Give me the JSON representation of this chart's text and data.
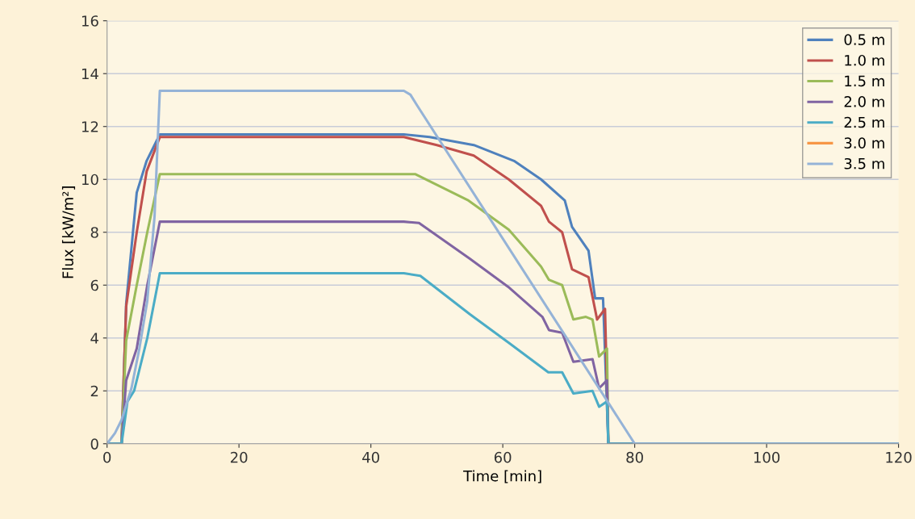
{
  "chart_data": {
    "type": "line",
    "xlabel": "Time [min]",
    "ylabel": "Flux [kW/m²]",
    "xlim": [
      0,
      120
    ],
    "ylim": [
      0,
      16
    ],
    "xticks": [
      0,
      20,
      40,
      60,
      80,
      100,
      120
    ],
    "yticks": [
      0,
      2,
      4,
      6,
      8,
      10,
      12,
      14,
      16
    ],
    "grid": "y",
    "legend": "top right",
    "marker": "none",
    "line_style": "solid",
    "series": [
      {
        "name": "0.5 m",
        "color": "#4f81bd",
        "x": [
          0,
          2.2,
          2.9,
          4.5,
          6,
          8,
          45,
          48.9,
          55.6,
          61.7,
          65.8,
          69.4,
          70.5,
          73,
          74,
          75.2,
          76,
          120
        ],
        "values": [
          0,
          0,
          5.3,
          9.5,
          10.7,
          11.7,
          11.7,
          11.6,
          11.3,
          10.7,
          10.0,
          9.2,
          8.2,
          7.3,
          5.5,
          5.5,
          0,
          0
        ]
      },
      {
        "name": "1.0 m",
        "color": "#c0504d",
        "x": [
          0,
          2.2,
          2.9,
          4.5,
          6,
          8,
          45,
          50,
          55.6,
          60.9,
          65.8,
          67,
          69,
          70.5,
          73,
          74.3,
          75.5,
          76,
          120
        ],
        "values": [
          0,
          0,
          5.2,
          8,
          10.3,
          11.6,
          11.6,
          11.3,
          10.9,
          10.0,
          9.0,
          8.4,
          8.0,
          6.6,
          6.3,
          4.7,
          5.1,
          0,
          0
        ]
      },
      {
        "name": "1.5 m",
        "color": "#9bbb59",
        "x": [
          0,
          2.2,
          2.9,
          4.5,
          6.1,
          8,
          46.7,
          54.8,
          60.9,
          65.8,
          67,
          69,
          70.7,
          72.6,
          73.6,
          74.6,
          75.8,
          76,
          120
        ],
        "values": [
          0,
          0,
          3.9,
          6,
          8.0,
          10.2,
          10.2,
          9.2,
          8.1,
          6.7,
          6.2,
          6.0,
          4.7,
          4.8,
          4.7,
          3.3,
          3.6,
          0,
          0
        ]
      },
      {
        "name": "2.0 m",
        "color": "#8064a2",
        "x": [
          0,
          2.2,
          2.9,
          4.5,
          6.1,
          8,
          45,
          47.3,
          55,
          61,
          66,
          67,
          69,
          70.7,
          73.6,
          74.6,
          75.8,
          76,
          120
        ],
        "values": [
          0,
          0,
          2.4,
          3.6,
          6.0,
          8.4,
          8.4,
          8.35,
          7.0,
          5.9,
          4.8,
          4.3,
          4.2,
          3.1,
          3.2,
          2.1,
          2.4,
          0,
          0
        ]
      },
      {
        "name": "2.5 m",
        "color": "#4bacc6",
        "x": [
          0,
          2.2,
          3.1,
          4.1,
          6.1,
          8,
          45,
          47.5,
          55,
          61,
          66.9,
          69,
          70.7,
          73.6,
          74.6,
          75.8,
          76,
          120
        ],
        "values": [
          0,
          0,
          1.6,
          2.0,
          4.0,
          6.45,
          6.45,
          6.35,
          4.9,
          3.8,
          2.7,
          2.7,
          1.9,
          2.0,
          1.4,
          1.6,
          0,
          0
        ]
      },
      {
        "name": "3.0 m",
        "color": "#f79646"
      },
      {
        "name": "3.5 m",
        "color": "#95b3d7",
        "x": [
          0,
          1.2,
          2.2,
          3.7,
          4.9,
          6.1,
          7.2,
          8,
          45,
          46,
          47,
          80,
          120
        ],
        "values": [
          0,
          0.4,
          0.9,
          2.1,
          3.6,
          5.4,
          8.6,
          13.35,
          13.35,
          13.2,
          12.8,
          0,
          0
        ]
      }
    ]
  }
}
